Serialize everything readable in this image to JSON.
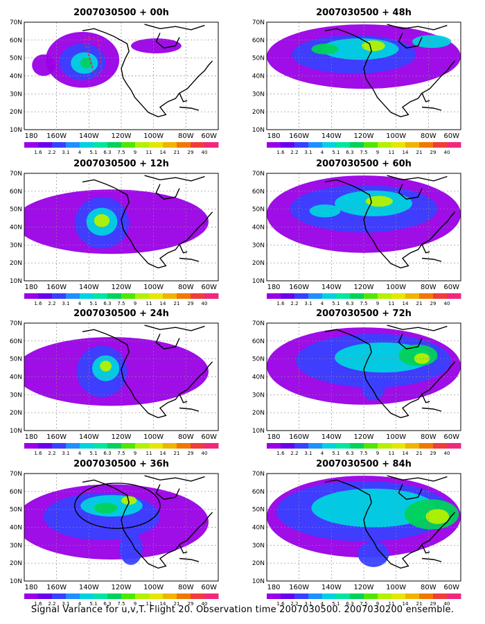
{
  "panels": [
    {
      "title": "2007030500  + 00h"
    },
    {
      "title": "2007030500  + 48h"
    },
    {
      "title": "2007030500  + 12h"
    },
    {
      "title": "2007030500  + 60h"
    },
    {
      "title": "2007030500  + 24h"
    },
    {
      "title": "2007030500  + 72h"
    },
    {
      "title": "2007030500  + 36h"
    },
    {
      "title": "2007030500  + 84h"
    }
  ],
  "lat_ticks": [
    "10N",
    "20N",
    "30N",
    "40N",
    "50N",
    "60N",
    "70N"
  ],
  "lon_ticks": [
    "180",
    "160W",
    "140W",
    "120W",
    "100W",
    "80W",
    "60W"
  ],
  "colorbar": {
    "labels": [
      "1.6",
      "2.2",
      "3.1",
      "4",
      "5.1",
      "6.3",
      "7.5",
      "9",
      "11",
      "14",
      "21",
      "29",
      "40"
    ],
    "colors": [
      "#9a00e6",
      "#6a00f0",
      "#3a40ff",
      "#1e90ff",
      "#00d2e0",
      "#00e6a0",
      "#00d25a",
      "#50e600",
      "#b4f000",
      "#e6e600",
      "#f0b400",
      "#f07800",
      "#f03c3c",
      "#f0287c"
    ]
  },
  "caption": "Signal Variance for u,v,T. Flight 20. Observation time 2007030500. 2007030200 ensemble."
}
